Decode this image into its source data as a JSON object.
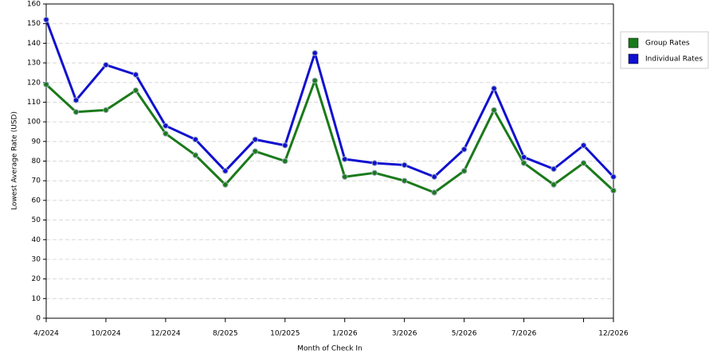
{
  "chart_data": {
    "type": "line",
    "x_label": "Month of Check In",
    "y_label": "Lowest Average Rate (USD)",
    "categories": [
      "4/2024",
      null,
      "10/2024",
      null,
      "12/2024",
      null,
      "8/2025",
      null,
      "10/2025",
      null,
      "1/2026",
      null,
      "3/2026",
      null,
      "5/2026",
      null,
      "7/2026",
      null,
      null,
      "12/2026"
    ],
    "series": [
      {
        "name": "Group Rates",
        "color": "#1a7a1a",
        "values": [
          119,
          105,
          106,
          116,
          94,
          83,
          68,
          85,
          80,
          121,
          72,
          74,
          70,
          64,
          75,
          106,
          79,
          68,
          79,
          65
        ]
      },
      {
        "name": "Individual Rates",
        "color": "#1010d0",
        "values": [
          152,
          111,
          129,
          124,
          98,
          91,
          75,
          91,
          88,
          135,
          81,
          79,
          78,
          72,
          86,
          117,
          82,
          76,
          88,
          72
        ]
      }
    ],
    "ylim": [
      0,
      160
    ],
    "yticks": [
      0,
      10,
      20,
      30,
      40,
      50,
      60,
      70,
      80,
      90,
      100,
      110,
      120,
      130,
      140,
      150,
      160
    ],
    "grid": true,
    "legend": "right"
  }
}
